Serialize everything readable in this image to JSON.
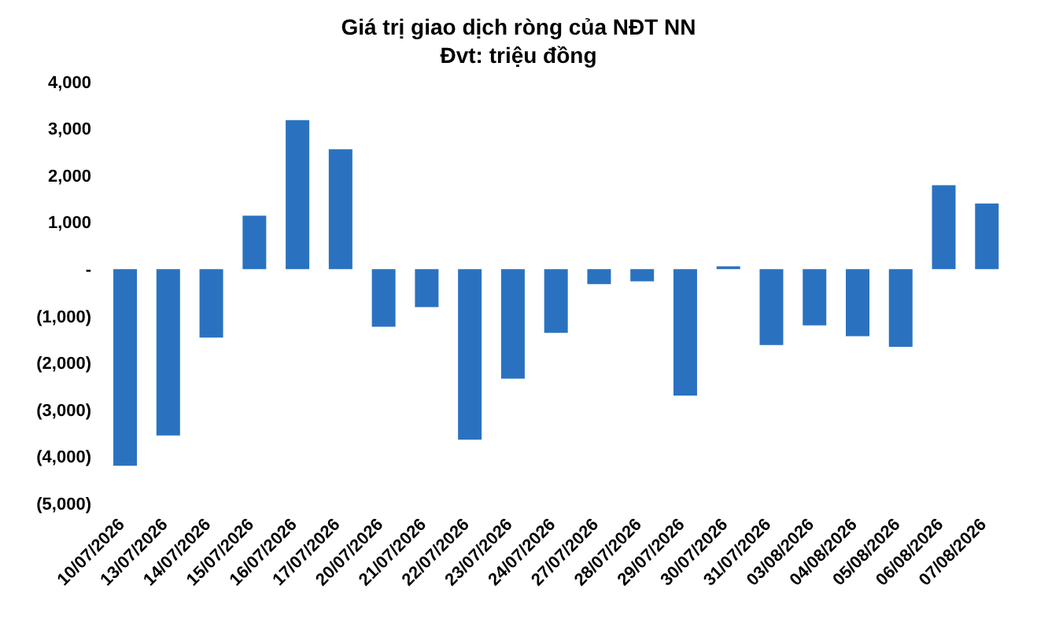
{
  "chart_data": {
    "type": "bar",
    "title": "Giá trị giao dịch ròng của NĐT NN",
    "subtitle": "Đvt: triệu đồng",
    "categories": [
      "10/07/2026",
      "13/07/2026",
      "14/07/2026",
      "15/07/2026",
      "16/07/2026",
      "17/07/2026",
      "20/07/2026",
      "21/07/2026",
      "22/07/2026",
      "23/07/2026",
      "24/07/2026",
      "27/07/2026",
      "28/07/2026",
      "29/07/2026",
      "30/07/2026",
      "31/07/2026",
      "03/08/2026",
      "04/08/2026",
      "05/08/2026",
      "06/08/2026",
      "07/08/2026"
    ],
    "values": [
      -4200,
      -3550,
      -1460,
      1140,
      3180,
      2560,
      -1230,
      -810,
      -3640,
      -2340,
      -1360,
      -320,
      -260,
      -2700,
      60,
      -1620,
      -1200,
      -1430,
      -1660,
      1790,
      1400
    ],
    "color": "#2a72c0",
    "ylim": [
      -5000,
      4000
    ],
    "yticks": [
      {
        "value": -5000,
        "label": "(5,000)"
      },
      {
        "value": -4000,
        "label": "(4,000)"
      },
      {
        "value": -3000,
        "label": "(3,000)"
      },
      {
        "value": -2000,
        "label": "(2,000)"
      },
      {
        "value": -1000,
        "label": "(1,000)"
      },
      {
        "value": 0,
        "label": "-"
      },
      {
        "value": 1000,
        "label": "1,000"
      },
      {
        "value": 2000,
        "label": "2,000"
      },
      {
        "value": 3000,
        "label": "3,000"
      },
      {
        "value": 4000,
        "label": "4,000"
      }
    ],
    "grid": false
  }
}
